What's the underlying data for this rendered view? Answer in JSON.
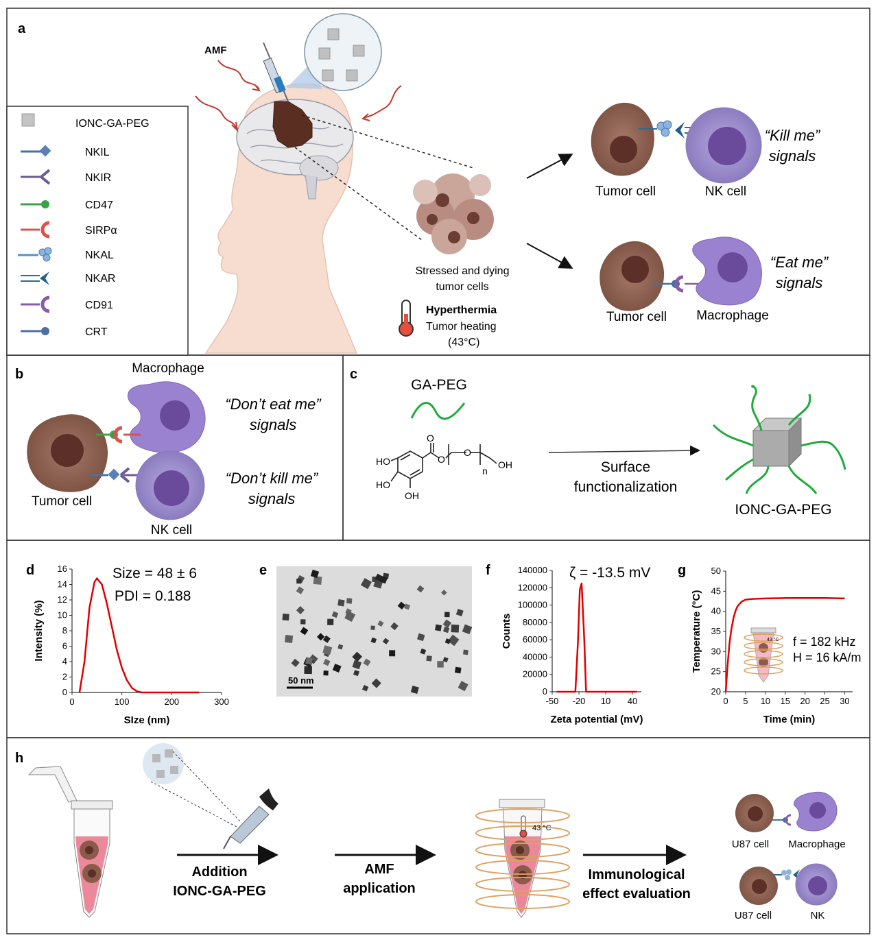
{
  "panels": {
    "a": "a",
    "b": "b",
    "c": "c",
    "d": "d",
    "e": "e",
    "f": "f",
    "g": "g",
    "h": "h"
  },
  "panel_a": {
    "amf": "AMF",
    "legend": [
      {
        "label": "IONC-GA-PEG",
        "icon": "cube-icon",
        "color": "#b5b5b5"
      },
      {
        "label": "NKIL",
        "icon": "diamond-receptor-icon",
        "color": "#4a6fa5"
      },
      {
        "label": "NKIR",
        "icon": "y-receptor-icon",
        "color": "#6b5b95"
      },
      {
        "label": "CD47",
        "icon": "ball-receptor-icon",
        "color": "#3aa34a"
      },
      {
        "label": "SIRPα",
        "icon": "cup-receptor-icon",
        "color": "#d9534f"
      },
      {
        "label": "NKAL",
        "icon": "cluster-receptor-icon",
        "color": "#5a8fc9"
      },
      {
        "label": "NKAR",
        "icon": "claw-receptor-icon",
        "color": "#2f6a8f"
      },
      {
        "label": "CD91",
        "icon": "cup-receptor-icon",
        "color": "#8a5ba6"
      },
      {
        "label": "CRT",
        "icon": "ball-receptor-icon",
        "color": "#4a6fa5"
      }
    ],
    "stressed_line1": "Stressed and dying",
    "stressed_line2": "tumor cells",
    "hyper_title": "Hyperthermia",
    "hyper_line1": "Tumor heating",
    "hyper_line2": "(43°C)",
    "kill_me_1": "“Kill me”",
    "kill_me_2": "signals",
    "eat_me_1": "“Eat me”",
    "eat_me_2": "signals",
    "tumor_cell": "Tumor cell",
    "nk_cell": "NK cell",
    "macrophage": "Macrophage"
  },
  "panel_b": {
    "macrophage": "Macrophage",
    "dont_eat_1": "“Don’t eat me”",
    "dont_eat_2": "signals",
    "dont_kill_1": "“Don’t kill me”",
    "dont_kill_2": "signals",
    "tumor_cell": "Tumor cell",
    "nk_cell": "NK cell"
  },
  "panel_c": {
    "ga_peg": "GA-PEG",
    "ho1": "HO",
    "ho2": "HO",
    "oh1": "OH",
    "oh2": "OH",
    "o1": "O",
    "o2": "O",
    "o3": "O",
    "n": "n",
    "surface_1": "Surface",
    "surface_2": "functionalization",
    "product": "IONC-GA-PEG"
  },
  "panel_e": {
    "scale": "50 nm"
  },
  "panel_h": {
    "addition_1": "Addition",
    "addition_2": "IONC-GA-PEG",
    "amf_1": "AMF",
    "amf_2": "application",
    "immuno_1": "Immunological",
    "immuno_2": "effect evaluation",
    "temp": "43 °C",
    "u87_1": "U87 cell",
    "macrophage": "Macrophage",
    "u87_2": "U87 cell",
    "nk": "NK"
  },
  "colors": {
    "tumor": "#8a5a4a",
    "tumor_nucleus": "#6b3d33",
    "nk": "#9b8ac7",
    "nk_nucleus": "#6a4a9a",
    "macrophage": "#9b82d0",
    "curve": "#e00000",
    "peg": "#1faa3c"
  },
  "chart_data": [
    {
      "type": "line",
      "panel": "d",
      "annotation_1": "Size = 48 ± 6",
      "annotation_2": "PDI = 0.188",
      "xlabel": "SIze (nm)",
      "ylabel": "Intensity (%)",
      "xlim": [
        0,
        300
      ],
      "ylim": [
        0,
        16
      ],
      "xticks": [
        "0",
        "100",
        "200",
        "300"
      ],
      "yticks": [
        "0",
        "2",
        "4",
        "6",
        "8",
        "10",
        "12",
        "14",
        "16"
      ],
      "series": [
        {
          "x": [
            15,
            25,
            35,
            45,
            50,
            60,
            70,
            80,
            90,
            100,
            110,
            120,
            130,
            140,
            160,
            200,
            255
          ],
          "values": [
            0,
            4,
            11,
            14.3,
            14.8,
            14,
            11.5,
            8.5,
            5.5,
            3.2,
            1.6,
            0.6,
            0.15,
            0,
            0,
            0,
            0
          ]
        }
      ]
    },
    {
      "type": "line",
      "panel": "f",
      "annotation": "ζ = -13.5 mV",
      "xlabel": "Zeta potential (mV)",
      "ylabel": "Counts",
      "xlim": [
        -50,
        50
      ],
      "ylim": [
        0,
        140000
      ],
      "xticks": [
        "-50",
        "-20",
        "10",
        "40"
      ],
      "yticks": [
        "0",
        "20000",
        "40000",
        "60000",
        "80000",
        "100000",
        "120000",
        "140000"
      ],
      "series": [
        {
          "x": [
            -45,
            -24,
            -21,
            -19,
            -17,
            -14,
            -12,
            -5,
            45
          ],
          "values": [
            0,
            0,
            60000,
            118000,
            125000,
            60000,
            0,
            0,
            0
          ]
        }
      ]
    },
    {
      "type": "line",
      "panel": "g",
      "annotation_1": "f = 182 kHz",
      "annotation_2": "H = 16 kA/m",
      "inset_temp": "43 °C",
      "xlabel": "Time (min)",
      "ylabel": "Temperature (°C)",
      "xlim": [
        0,
        32
      ],
      "ylim": [
        20,
        50
      ],
      "xticks": [
        "0",
        "5",
        "10",
        "15",
        "20",
        "25",
        "30"
      ],
      "yticks": [
        "20",
        "25",
        "30",
        "35",
        "40",
        "45",
        "50"
      ],
      "series": [
        {
          "x": [
            0,
            0.5,
            1,
            1.5,
            2,
            2.5,
            3,
            4,
            5,
            7,
            10,
            15,
            20,
            25,
            30
          ],
          "values": [
            20,
            27,
            32.5,
            36,
            38.5,
            40.2,
            41.3,
            42.4,
            42.9,
            43.1,
            43.2,
            43.3,
            43.3,
            43.3,
            43.2
          ]
        }
      ]
    }
  ]
}
